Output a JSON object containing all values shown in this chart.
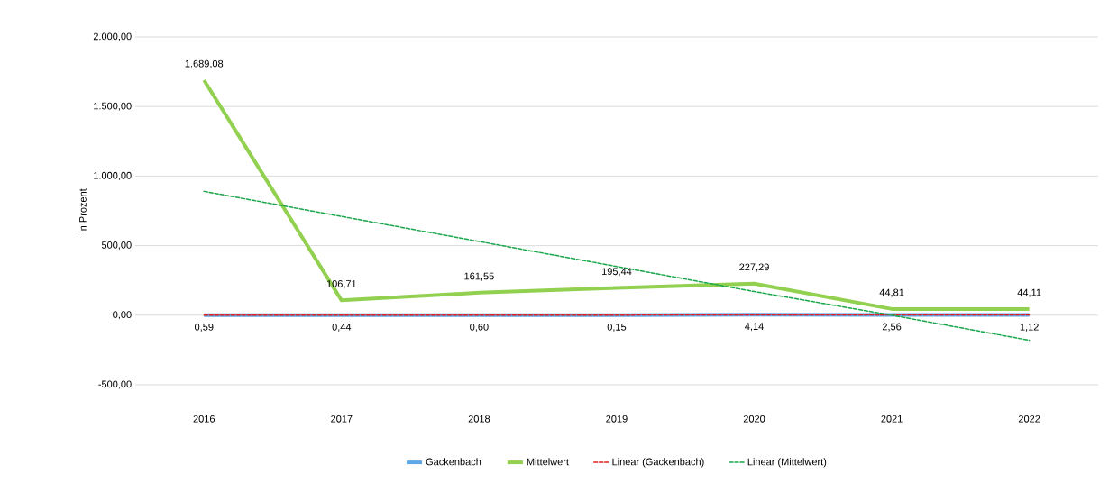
{
  "chart_data": {
    "type": "line",
    "ylabel": "in Prozent",
    "categories": [
      "2016",
      "2017",
      "2018",
      "2019",
      "2020",
      "2021",
      "2022"
    ],
    "series": [
      {
        "name": "Gackenbach",
        "color": "#5fa8e8",
        "values": [
          0.59,
          0.44,
          0.6,
          0.15,
          4.14,
          2.56,
          1.12
        ],
        "value_labels": [
          "0,59",
          "0,44",
          "0,60",
          "0,15",
          "4,14",
          "2,56",
          "1,12"
        ]
      },
      {
        "name": "Mittelwert",
        "color": "#92d050",
        "values": [
          1689.08,
          106.71,
          161.55,
          195.44,
          227.29,
          44.81,
          44.11
        ],
        "value_labels": [
          "1.689,08",
          "106,71",
          "161,55",
          "195,44",
          "227,29",
          "44,81",
          "44,11"
        ]
      },
      {
        "name": "Linear (Gackenbach)",
        "color": "#e02020",
        "line_style": "dashed",
        "values": [
          0,
          1,
          1,
          1,
          2,
          2,
          2
        ]
      },
      {
        "name": "Linear (Mittelwert)",
        "color": "#1aa64a",
        "line_style": "dashed",
        "values": [
          890,
          710,
          530,
          350,
          170,
          0,
          -180
        ]
      }
    ],
    "ylim": [
      -500,
      2000
    ],
    "yticks": [
      {
        "value": -500,
        "label": "-500,00"
      },
      {
        "value": 0,
        "label": "0,00"
      },
      {
        "value": 500,
        "label": "500,00"
      },
      {
        "value": 1000,
        "label": "1.000,00"
      },
      {
        "value": 1500,
        "label": "1.500,00"
      },
      {
        "value": 2000,
        "label": "2.000,00"
      }
    ],
    "grid": "y",
    "legend": "bottom",
    "marker": "none"
  }
}
